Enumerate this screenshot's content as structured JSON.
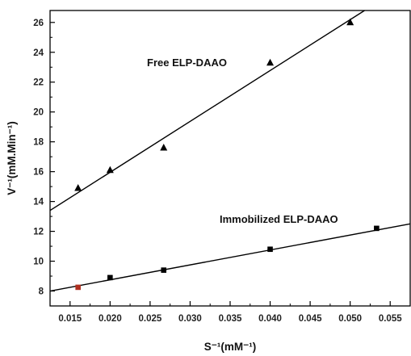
{
  "chart_data": {
    "type": "scatter",
    "title": "",
    "xlabel": "S⁻¹(mM⁻¹)",
    "ylabel": "V⁻¹(mM.Min⁻¹)",
    "xlim": [
      0.0125,
      0.0575
    ],
    "ylim": [
      7.0,
      26.8
    ],
    "xticks": [
      "0.015",
      "0.020",
      "0.025",
      "0.030",
      "0.035",
      "0.040",
      "0.045",
      "0.050",
      "0.055"
    ],
    "yticks": [
      "8",
      "10",
      "12",
      "14",
      "16",
      "18",
      "20",
      "22",
      "24",
      "26"
    ],
    "grid": false,
    "series": [
      {
        "name": "Free ELP-DAAO",
        "marker": "triangle",
        "color": "#000000",
        "x": [
          0.016,
          0.02,
          0.0267,
          0.04,
          0.05
        ],
        "y": [
          14.9,
          16.1,
          17.6,
          23.3,
          26.0
        ],
        "fit": {
          "x": [
            0.0125,
            0.0518
          ],
          "y": [
            13.4,
            26.8
          ]
        }
      },
      {
        "name": "Immobilized ELP-DAAO",
        "marker": "square",
        "color": "#000000",
        "first_point_color": "#b03020",
        "x": [
          0.016,
          0.02,
          0.0267,
          0.04,
          0.0533
        ],
        "y": [
          8.25,
          8.9,
          9.4,
          10.8,
          12.2
        ],
        "fit": {
          "x": [
            0.0125,
            0.0575
          ],
          "y": [
            8.0,
            12.5
          ]
        }
      }
    ]
  }
}
